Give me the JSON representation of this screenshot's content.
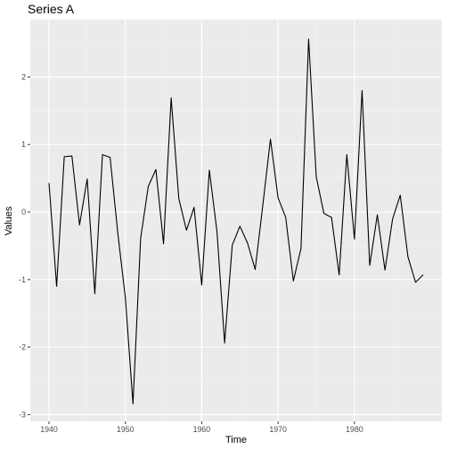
{
  "chart_data": {
    "type": "line",
    "title": "Series A",
    "xlabel": "Time",
    "ylabel": "Values",
    "xlim": [
      1937.55,
      1991.45
    ],
    "ylim": [
      -3.1,
      2.85
    ],
    "xticks": [
      1940,
      1950,
      1960,
      1970,
      1980
    ],
    "yticks": [
      -3,
      -2,
      -1,
      0,
      1,
      2
    ],
    "grid": true,
    "legend": "none",
    "colors": {
      "panel": "#ebebeb",
      "grid_major": "#ffffff",
      "grid_minor": "#f5f5f5",
      "line": "#000000",
      "tick": "#333333",
      "tick_label": "#4d4d4d"
    },
    "series": [
      {
        "x": [
          1940,
          1941,
          1942,
          1943,
          1944,
          1945,
          1946,
          1947,
          1948,
          1949,
          1950,
          1951,
          1952,
          1953,
          1954,
          1955,
          1956,
          1957,
          1958,
          1959,
          1960,
          1961,
          1962,
          1963,
          1964,
          1965,
          1966,
          1967,
          1968,
          1969,
          1970,
          1971,
          1972,
          1973,
          1974,
          1975,
          1976,
          1977,
          1978,
          1979,
          1980,
          1981,
          1982,
          1983,
          1984,
          1985,
          1986,
          1987,
          1988,
          1989
        ],
        "values": [
          0.43,
          -1.1,
          0.82,
          0.83,
          -0.19,
          0.49,
          -1.21,
          0.85,
          0.81,
          -0.3,
          -1.27,
          -2.84,
          -0.39,
          0.38,
          0.63,
          -0.47,
          1.69,
          0.2,
          -0.27,
          0.07,
          -1.08,
          0.62,
          -0.29,
          -1.94,
          -0.49,
          -0.21,
          -0.46,
          -0.85,
          0.1,
          1.08,
          0.21,
          -0.08,
          -1.02,
          -0.54,
          2.56,
          0.52,
          -0.02,
          -0.08,
          -0.93,
          0.85,
          -0.4,
          1.8,
          -0.79,
          -0.04,
          -0.86,
          -0.1,
          0.25,
          -0.66,
          -1.04,
          -0.93
        ]
      }
    ]
  }
}
